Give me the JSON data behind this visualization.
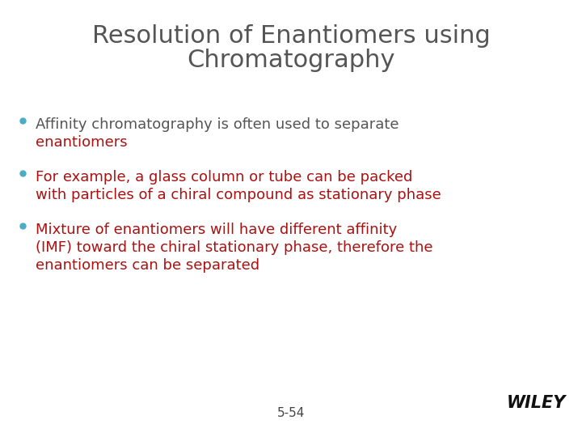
{
  "title_line1": "Resolution of Enantiomers using",
  "title_line2": "Chromatography",
  "title_color": "#555555",
  "title_fontsize": 22,
  "background_color": "#ffffff",
  "bullet_color": "#4bacc6",
  "bullet_fontsize": 13,
  "text_color_dark": "#555555",
  "text_color_red": "#aa1111",
  "bullet1_line1": "Affinity chromatography is often used to separate",
  "bullet1_line1_color": "#555555",
  "bullet1_line2": "enantiomers",
  "bullet1_line2_color": "#aa1111",
  "bullet2_line1": "For example, a glass column or tube can be packed",
  "bullet2_line1_color": "#aa1111",
  "bullet2_line2": "with particles of a chiral compound as stationary phase",
  "bullet2_line2_color": "#aa1111",
  "bullet3_line1": "Mixture of enantiomers will have different affinity",
  "bullet3_line1_color": "#aa1111",
  "bullet3_line2": "(IMF) toward the chiral stationary phase, therefore the",
  "bullet3_line2_color": "#aa1111",
  "bullet3_line3": "enantiomers can be separated",
  "bullet3_line3_color": "#aa1111",
  "footer_text": "5-54",
  "footer_color": "#444444",
  "footer_fontsize": 11,
  "wiley_text": "WILEY",
  "wiley_color": "#111111",
  "wiley_fontsize": 15
}
